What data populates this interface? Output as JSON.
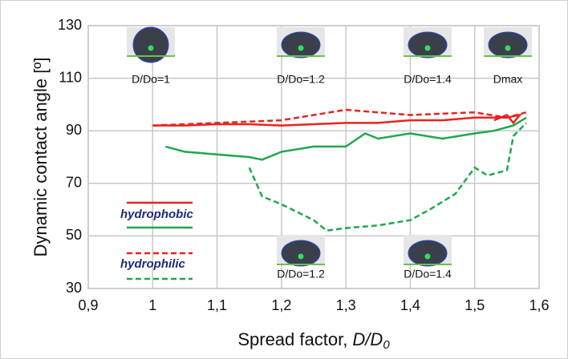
{
  "chart_data": {
    "type": "line",
    "x_label": {
      "text": "Spread factor, ",
      "var": "D/D",
      "sub": "0"
    },
    "y_label": "Dynamic contact angle [º]",
    "xlim": [
      0.9,
      1.6
    ],
    "xticks": [
      {
        "value": 0.9,
        "label": "0,9"
      },
      1,
      {
        "value": 1.1,
        "label": "1,1"
      },
      {
        "value": 1.2,
        "label": "1,2"
      },
      {
        "value": 1.3,
        "label": "1,3"
      },
      {
        "value": 1.4,
        "label": "1,4"
      },
      {
        "value": 1.5,
        "label": "1,5"
      },
      {
        "value": 1.6,
        "label": "1,6"
      }
    ],
    "ylim": [
      30,
      130
    ],
    "yticks": [
      30,
      50,
      70,
      90,
      110,
      130
    ],
    "grid": true,
    "groups": [
      {
        "name": "hydrophobic",
        "dash": false,
        "series": [
          {
            "color": "#e8231f",
            "x": [
              1.0,
              1.05,
              1.1,
              1.15,
              1.2,
              1.25,
              1.3,
              1.35,
              1.4,
              1.45,
              1.5,
              1.53,
              1.55,
              1.57,
              1.56,
              1.55,
              1.53
            ],
            "values": [
              92,
              92,
              92.5,
              92.5,
              92,
              92.5,
              93,
              93,
              94,
              94,
              95,
              95,
              95,
              96,
              93,
              96,
              94
            ]
          },
          {
            "color": "#1fa84a",
            "x": [
              1.02,
              1.05,
              1.1,
              1.15,
              1.17,
              1.2,
              1.25,
              1.3,
              1.33,
              1.35,
              1.4,
              1.45,
              1.5,
              1.53,
              1.56,
              1.58
            ],
            "values": [
              84,
              82,
              81,
              80,
              79,
              82,
              84,
              84,
              89,
              87,
              89,
              87,
              89,
              90,
              92,
              95
            ]
          }
        ]
      },
      {
        "name": "hydrophilic",
        "dash": true,
        "series": [
          {
            "color": "#e8231f",
            "x": [
              1.0,
              1.1,
              1.2,
              1.3,
              1.4,
              1.5,
              1.55,
              1.58
            ],
            "values": [
              92,
              93,
              94,
              98,
              96,
              97,
              95,
              97
            ]
          },
          {
            "color": "#1fa84a",
            "x": [
              1.15,
              1.17,
              1.2,
              1.25,
              1.27,
              1.3,
              1.35,
              1.4,
              1.43,
              1.47,
              1.5,
              1.52,
              1.55,
              1.56,
              1.58
            ],
            "values": [
              76,
              65,
              62,
              56,
              52,
              53,
              54,
              56,
              60,
              66,
              76,
              73,
              75,
              88,
              93
            ]
          }
        ]
      }
    ],
    "annotations": [
      "D/Do=1",
      "D/Do=1.2",
      "D/Do=1.4",
      "Dmax",
      "D/Do=1.2",
      "D/Do=1.4"
    ]
  }
}
